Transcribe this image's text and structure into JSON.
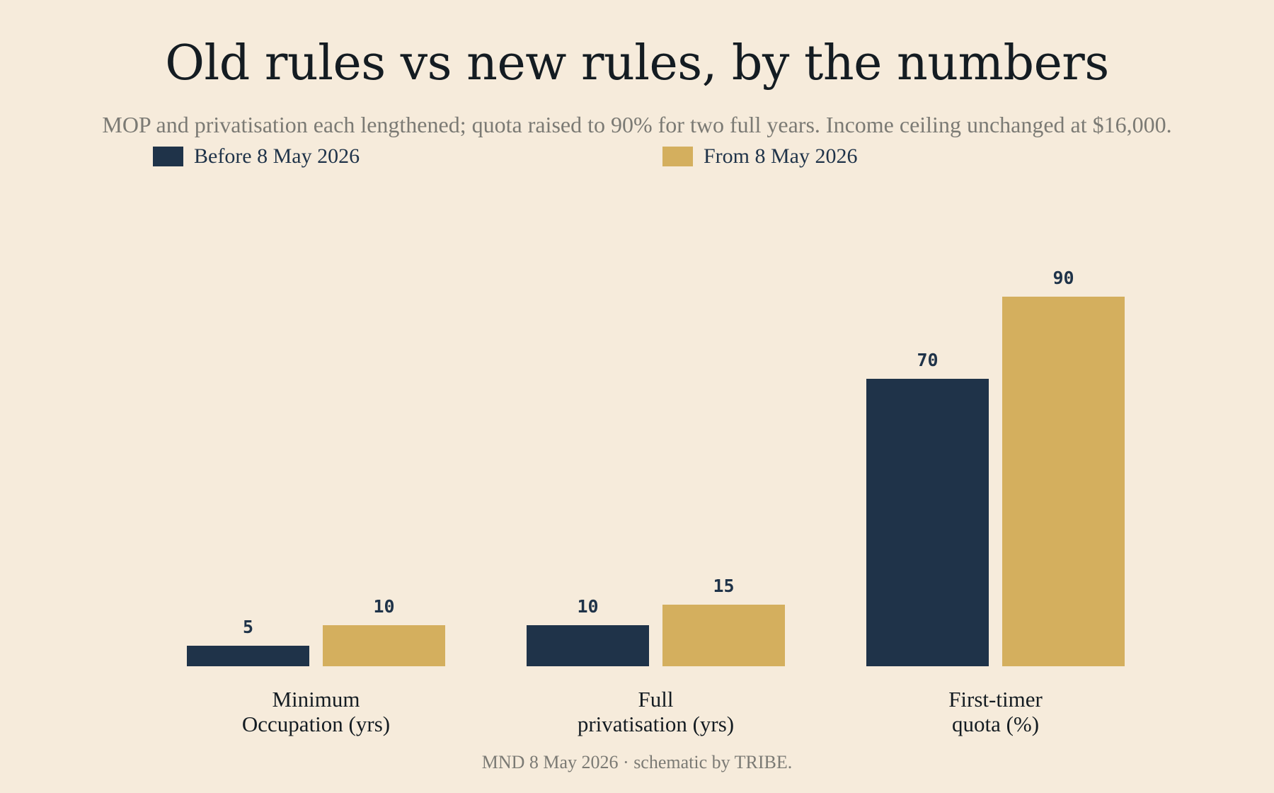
{
  "chart_data": {
    "type": "bar",
    "title": "Old rules vs new rules, by the numbers",
    "subtitle": "MOP and privatisation each lengthened; quota raised to 90% for two full years. Income ceiling unchanged at $16,000.",
    "categories": [
      [
        "Minimum",
        "Occupation (yrs)"
      ],
      [
        "Full",
        "privatisation (yrs)"
      ],
      [
        "First-timer",
        "quota (%)"
      ]
    ],
    "series": [
      {
        "name": "Before 8 May 2026",
        "color": "#1f3349",
        "values": [
          5,
          10,
          70
        ]
      },
      {
        "name": "From 8 May 2026",
        "color": "#d4af5e",
        "values": [
          10,
          15,
          90
        ]
      }
    ],
    "ylim": [
      0,
      100
    ],
    "grid": false,
    "legend": "top-left",
    "source": "MND 8 May 2026 · schematic by TRIBE."
  }
}
